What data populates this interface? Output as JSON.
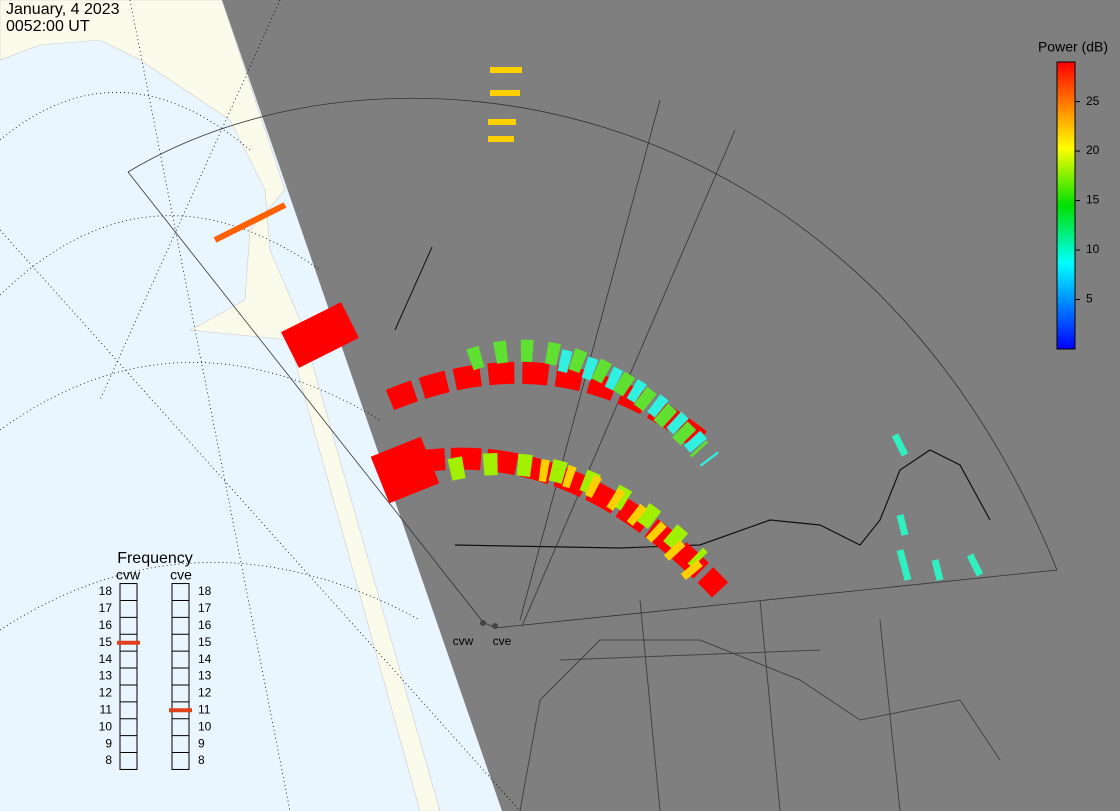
{
  "header": {
    "date": "January, 4 2023",
    "time": "0052:00 UT"
  },
  "colorbar": {
    "title": "Power (dB)",
    "lim": [
      0,
      29
    ],
    "ticks": [
      5,
      10,
      15,
      20,
      25
    ]
  },
  "frequency": {
    "title": "Frequency",
    "lim": [
      8,
      18
    ],
    "ticks": [
      8,
      9,
      10,
      11,
      12,
      13,
      14,
      15,
      16,
      17,
      18
    ],
    "radars": [
      {
        "name": "cvw",
        "value": 15,
        "color": "#e0401a"
      },
      {
        "name": "cve",
        "value": 11,
        "color": "#e0401a"
      }
    ]
  }
}
